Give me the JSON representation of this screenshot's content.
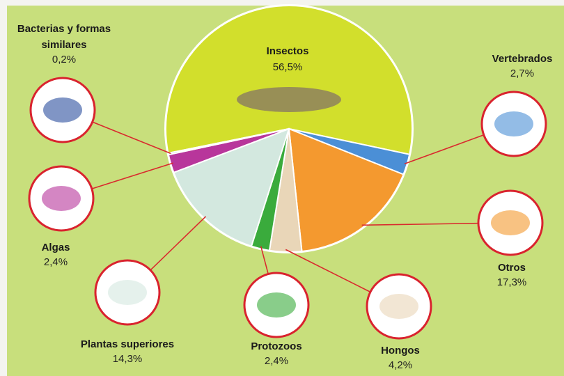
{
  "chart_data": {
    "type": "pie",
    "categories": [
      "Insectos",
      "Vertebrados",
      "Otros",
      "Hongos",
      "Protozoos",
      "Plantas superiores",
      "Algas",
      "Bacterias y formas similares"
    ],
    "values": [
      56.5,
      2.7,
      17.3,
      4.2,
      2.4,
      14.3,
      2.4,
      0.2
    ],
    "value_labels": [
      "56,5%",
      "2,7%",
      "17,3%",
      "4,2%",
      "2,4%",
      "14,3%",
      "2,4%",
      "0,2%"
    ],
    "colors": [
      "#d2df2c",
      "#4b8fd6",
      "#f4992f",
      "#e9d6b8",
      "#3aab3c",
      "#d3e8df",
      "#b8369b",
      "#2c4e9f"
    ]
  }
}
